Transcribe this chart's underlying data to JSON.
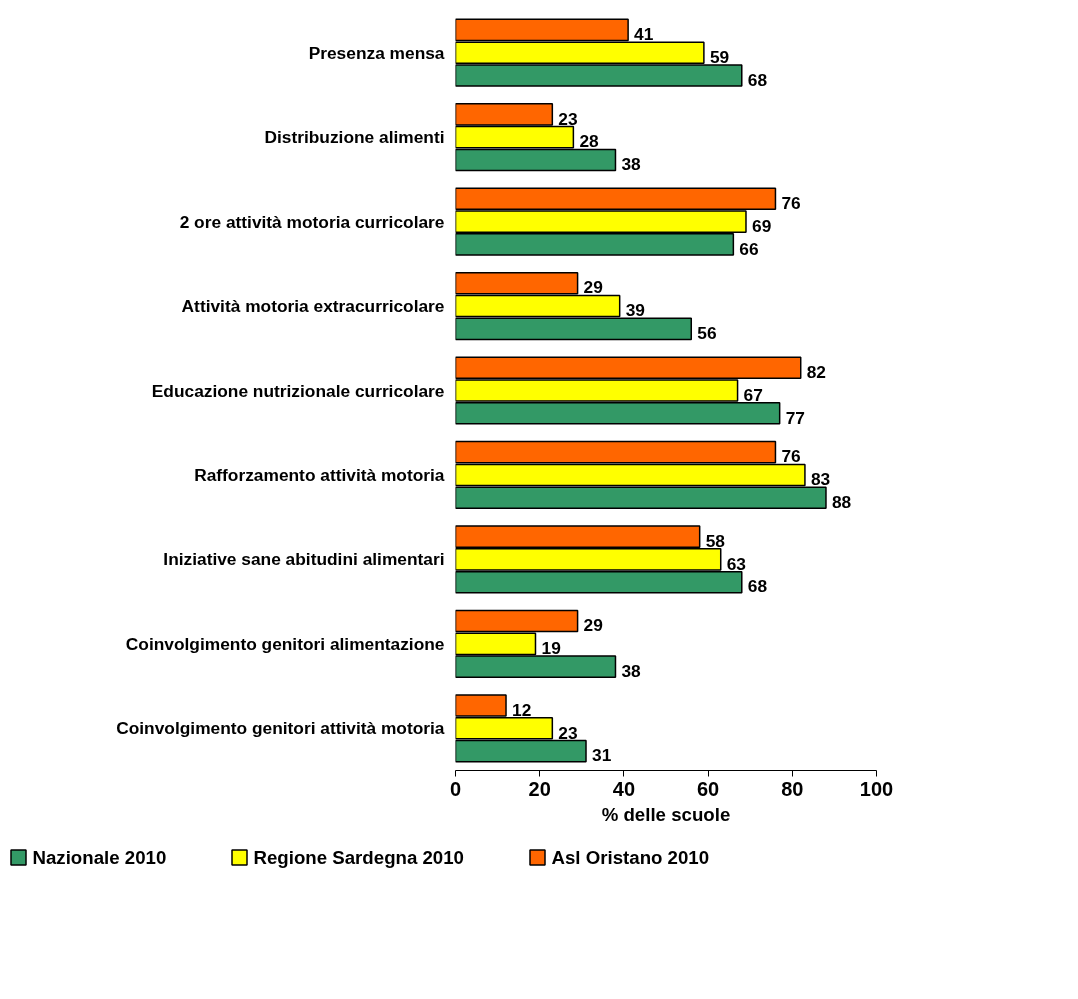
{
  "chart_data": {
    "type": "bar",
    "orientation": "horizontal",
    "xlabel": "% delle scuole",
    "categories": [
      "Presenza mensa",
      "Distribuzione alimenti",
      "2 ore attività motoria curricolare",
      "Attività motoria extracurricolare",
      "Educazione nutrizionale curricolare",
      "Rafforzamento attività motoria",
      "Iniziative sane abitudini alimentari",
      "Coinvolgimento genitori alimentazione",
      "Coinvolgimento genitori attività motoria"
    ],
    "series": [
      {
        "name": "Nazionale 2010",
        "color": "#339966",
        "values": [
          68,
          38,
          66,
          56,
          77,
          88,
          68,
          38,
          31
        ]
      },
      {
        "name": "Regione Sardegna 2010",
        "color": "#ffff00",
        "values": [
          59,
          28,
          69,
          39,
          67,
          83,
          63,
          19,
          23
        ]
      },
      {
        "name": "Asl Oristano 2010",
        "color": "#ff6600",
        "values": [
          41,
          23,
          76,
          29,
          82,
          76,
          58,
          29,
          12
        ]
      }
    ],
    "xlim": [
      0,
      100
    ],
    "xticks": [
      0,
      20,
      40,
      60,
      80,
      100
    ],
    "data_labels": true,
    "grid": false,
    "legend": "bottom"
  }
}
